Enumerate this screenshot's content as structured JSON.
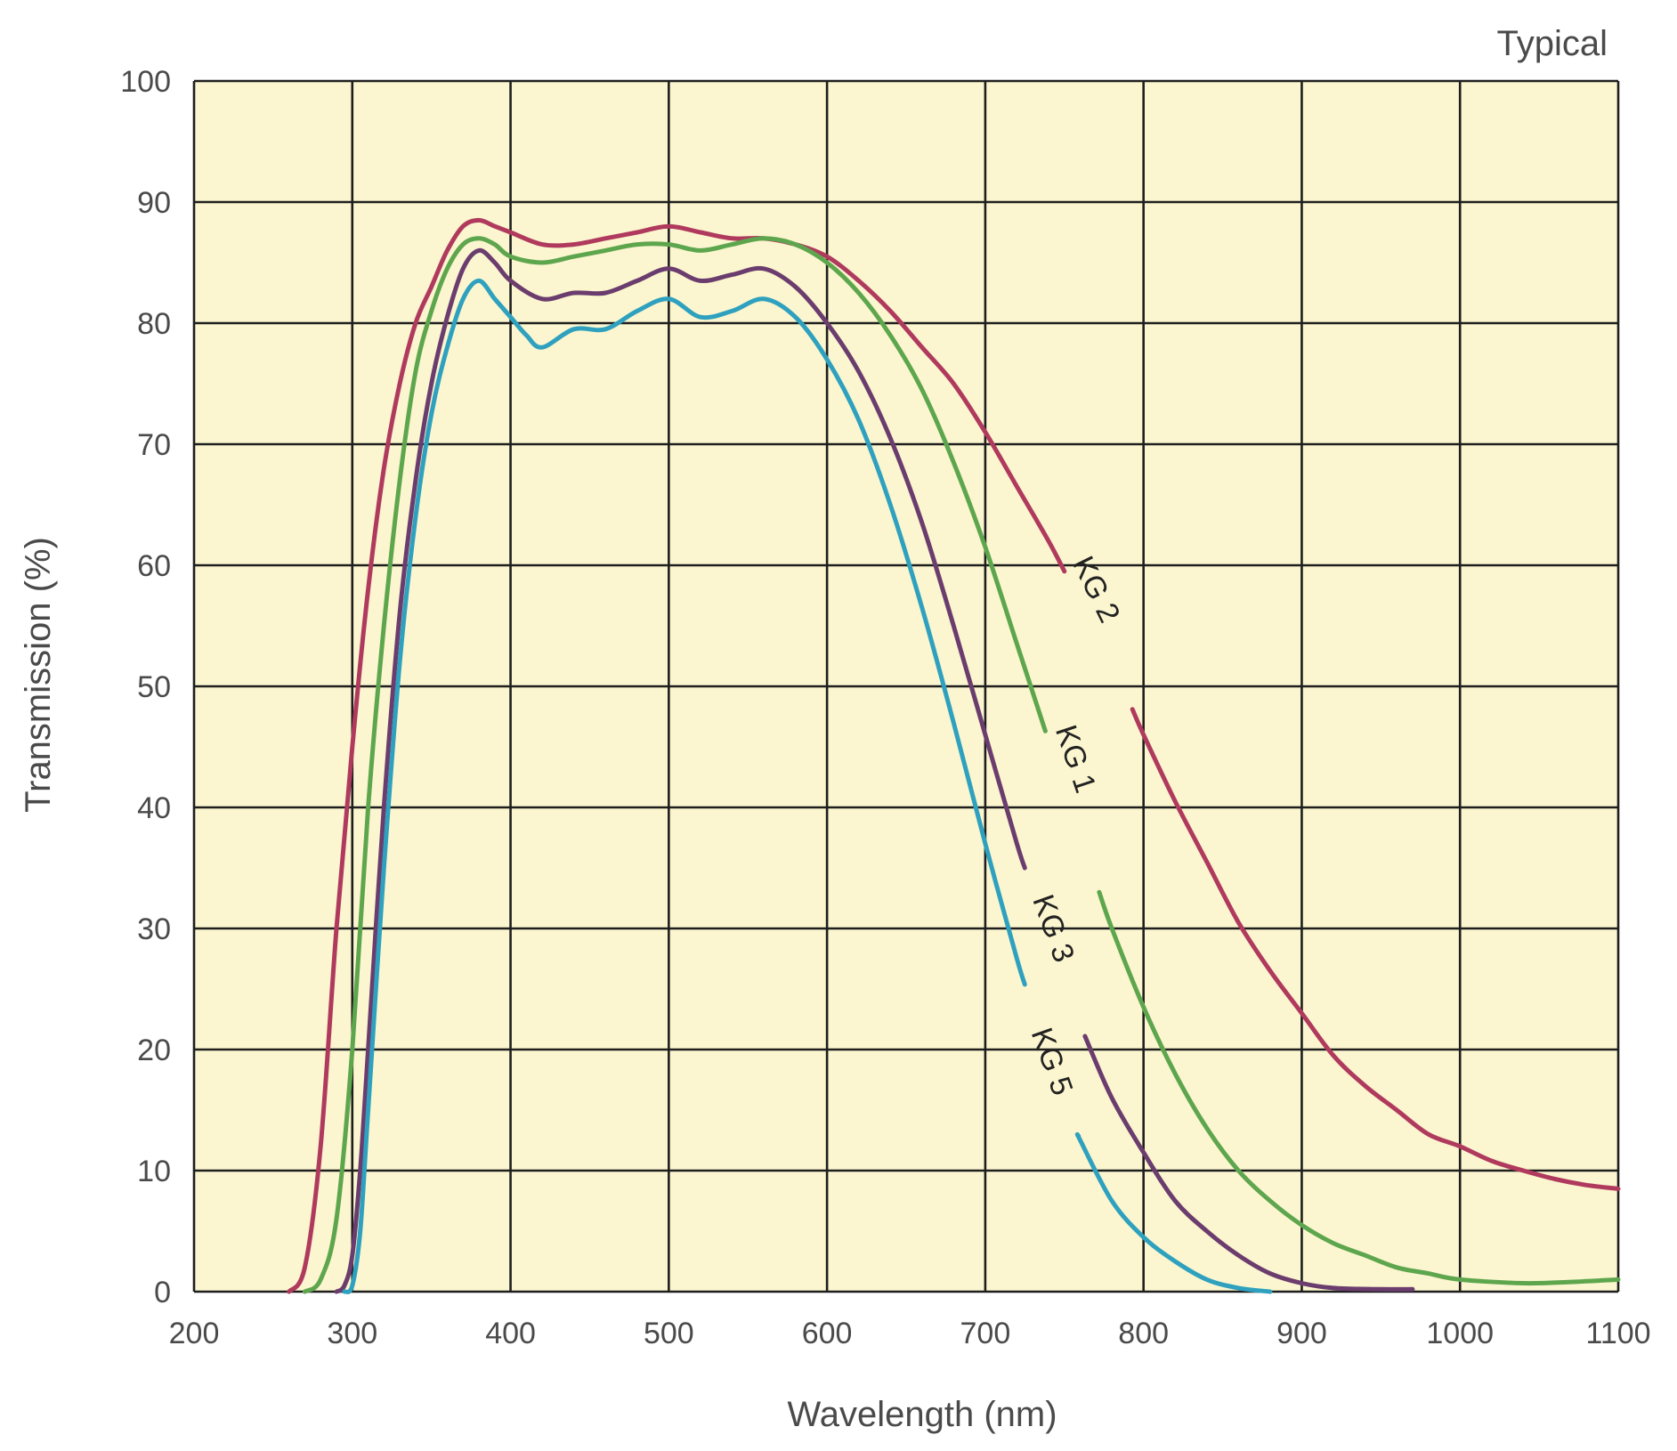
{
  "chart_data": {
    "type": "line",
    "title": "",
    "annotation": "Typical",
    "xlabel": "Wavelength (nm)",
    "ylabel": "Transmission (%)",
    "xlim": [
      200,
      1100
    ],
    "ylim": [
      0,
      100
    ],
    "x_ticks": [
      200,
      300,
      400,
      500,
      600,
      700,
      800,
      900,
      1000,
      1100
    ],
    "y_ticks": [
      0,
      10,
      20,
      30,
      40,
      50,
      60,
      70,
      80,
      90,
      100
    ],
    "grid": true,
    "plot_background": "#fbf6cf",
    "grid_color": "#1e1e1e",
    "series": [
      {
        "name": "KG 2",
        "color": "#b03a5e",
        "label_at": [
          770,
          58
        ],
        "gap": [
          750,
          793
        ],
        "points": [
          [
            260,
            0
          ],
          [
            270,
            2
          ],
          [
            280,
            12
          ],
          [
            290,
            30
          ],
          [
            300,
            45
          ],
          [
            310,
            58
          ],
          [
            320,
            68
          ],
          [
            330,
            75
          ],
          [
            340,
            80
          ],
          [
            350,
            83
          ],
          [
            360,
            86
          ],
          [
            370,
            88
          ],
          [
            380,
            88.5
          ],
          [
            390,
            88
          ],
          [
            400,
            87.5
          ],
          [
            420,
            86.5
          ],
          [
            440,
            86.5
          ],
          [
            460,
            87
          ],
          [
            480,
            87.5
          ],
          [
            500,
            88
          ],
          [
            520,
            87.5
          ],
          [
            540,
            87
          ],
          [
            560,
            87
          ],
          [
            580,
            86.5
          ],
          [
            600,
            85.5
          ],
          [
            620,
            83.5
          ],
          [
            640,
            81
          ],
          [
            660,
            78
          ],
          [
            680,
            75
          ],
          [
            700,
            71
          ],
          [
            720,
            66.5
          ],
          [
            740,
            62
          ],
          [
            760,
            57
          ],
          [
            780,
            52
          ],
          [
            800,
            46
          ],
          [
            820,
            40.5
          ],
          [
            840,
            35.5
          ],
          [
            860,
            30.5
          ],
          [
            880,
            26.5
          ],
          [
            900,
            23
          ],
          [
            920,
            19.5
          ],
          [
            940,
            17
          ],
          [
            960,
            15
          ],
          [
            980,
            13
          ],
          [
            1000,
            12
          ],
          [
            1020,
            10.8
          ],
          [
            1040,
            10
          ],
          [
            1060,
            9.3
          ],
          [
            1080,
            8.8
          ],
          [
            1100,
            8.5
          ]
        ]
      },
      {
        "name": "KG 1",
        "color": "#5ea64e",
        "label_at": [
          757,
          44
        ],
        "gap": [
          738,
          772
        ],
        "points": [
          [
            270,
            0
          ],
          [
            280,
            1
          ],
          [
            290,
            6
          ],
          [
            300,
            20
          ],
          [
            310,
            40
          ],
          [
            320,
            55
          ],
          [
            330,
            67
          ],
          [
            340,
            76
          ],
          [
            350,
            81
          ],
          [
            360,
            84.5
          ],
          [
            370,
            86.5
          ],
          [
            380,
            87
          ],
          [
            390,
            86.5
          ],
          [
            400,
            85.5
          ],
          [
            420,
            85
          ],
          [
            440,
            85.5
          ],
          [
            460,
            86
          ],
          [
            480,
            86.5
          ],
          [
            500,
            86.5
          ],
          [
            520,
            86
          ],
          [
            540,
            86.5
          ],
          [
            560,
            87
          ],
          [
            580,
            86.5
          ],
          [
            600,
            85
          ],
          [
            620,
            82.5
          ],
          [
            640,
            79
          ],
          [
            660,
            74.5
          ],
          [
            680,
            68.5
          ],
          [
            700,
            61.5
          ],
          [
            720,
            53.5
          ],
          [
            740,
            45.5
          ],
          [
            760,
            37.5
          ],
          [
            780,
            30
          ],
          [
            800,
            23.5
          ],
          [
            820,
            18
          ],
          [
            840,
            13.5
          ],
          [
            860,
            10
          ],
          [
            880,
            7.5
          ],
          [
            900,
            5.5
          ],
          [
            920,
            4
          ],
          [
            940,
            3
          ],
          [
            960,
            2
          ],
          [
            980,
            1.5
          ],
          [
            1000,
            1
          ],
          [
            1040,
            0.7
          ],
          [
            1070,
            0.8
          ],
          [
            1100,
            1
          ]
        ]
      },
      {
        "name": "KG 3",
        "color": "#6b3d6e",
        "label_at": [
          743,
          30
        ],
        "gap": [
          725,
          763
        ],
        "points": [
          [
            290,
            0
          ],
          [
            295,
            0.5
          ],
          [
            300,
            3
          ],
          [
            305,
            10
          ],
          [
            310,
            20
          ],
          [
            320,
            40
          ],
          [
            330,
            56
          ],
          [
            340,
            67
          ],
          [
            350,
            75
          ],
          [
            360,
            80.5
          ],
          [
            370,
            84.5
          ],
          [
            380,
            86
          ],
          [
            390,
            85
          ],
          [
            400,
            83.5
          ],
          [
            420,
            82
          ],
          [
            440,
            82.5
          ],
          [
            460,
            82.5
          ],
          [
            480,
            83.5
          ],
          [
            500,
            84.5
          ],
          [
            520,
            83.5
          ],
          [
            540,
            84
          ],
          [
            560,
            84.5
          ],
          [
            580,
            83
          ],
          [
            600,
            80
          ],
          [
            620,
            76
          ],
          [
            640,
            70.5
          ],
          [
            660,
            63.5
          ],
          [
            680,
            55
          ],
          [
            700,
            46
          ],
          [
            720,
            37
          ],
          [
            740,
            29
          ],
          [
            760,
            22
          ],
          [
            780,
            16
          ],
          [
            800,
            11.5
          ],
          [
            820,
            7.5
          ],
          [
            840,
            5
          ],
          [
            860,
            3
          ],
          [
            880,
            1.5
          ],
          [
            900,
            0.7
          ],
          [
            920,
            0.3
          ],
          [
            950,
            0.2
          ],
          [
            970,
            0.2
          ]
        ]
      },
      {
        "name": "KG 5",
        "color": "#2fa1bf",
        "label_at": [
          742,
          19
        ],
        "gap": [
          725,
          759
        ],
        "points": [
          [
            295,
            0
          ],
          [
            300,
            0.5
          ],
          [
            305,
            5
          ],
          [
            310,
            15
          ],
          [
            320,
            35
          ],
          [
            330,
            52
          ],
          [
            340,
            64
          ],
          [
            350,
            72.5
          ],
          [
            360,
            78
          ],
          [
            370,
            82
          ],
          [
            380,
            83.5
          ],
          [
            390,
            82
          ],
          [
            400,
            80.5
          ],
          [
            410,
            79
          ],
          [
            420,
            78
          ],
          [
            440,
            79.5
          ],
          [
            460,
            79.5
          ],
          [
            480,
            81
          ],
          [
            500,
            82
          ],
          [
            520,
            80.5
          ],
          [
            540,
            81
          ],
          [
            560,
            82
          ],
          [
            580,
            80.5
          ],
          [
            600,
            77
          ],
          [
            620,
            72
          ],
          [
            640,
            65
          ],
          [
            660,
            56.5
          ],
          [
            680,
            47
          ],
          [
            700,
            37
          ],
          [
            720,
            27.5
          ],
          [
            740,
            19
          ],
          [
            760,
            12.5
          ],
          [
            780,
            7.5
          ],
          [
            800,
            4.5
          ],
          [
            820,
            2.5
          ],
          [
            840,
            1
          ],
          [
            860,
            0.3
          ],
          [
            880,
            0
          ]
        ]
      }
    ]
  }
}
